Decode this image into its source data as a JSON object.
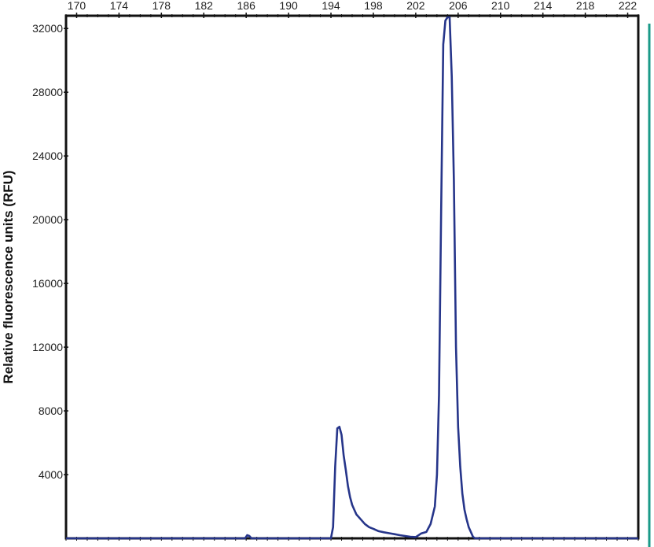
{
  "chart_data": {
    "type": "line",
    "title": "",
    "xlabel": "",
    "ylabel": "Relative fluorescence units (RFU)",
    "xlim": [
      169,
      223
    ],
    "ylim": [
      0,
      32800
    ],
    "x_ticks": [
      "170",
      "174",
      "178",
      "182",
      "186",
      "190",
      "194",
      "198",
      "202",
      "206",
      "210",
      "214",
      "218",
      "222"
    ],
    "y_ticks": [
      "4000",
      "8000",
      "12000",
      "16000",
      "20000",
      "24000",
      "28000",
      "32000"
    ],
    "x_tick_position": "top",
    "grid": false,
    "legend": "none",
    "series": [
      {
        "color": "#26358a",
        "x": [
          169,
          185.9,
          186.1,
          186.3,
          186.5,
          194.0,
          194.2,
          194.4,
          194.6,
          194.8,
          195.0,
          195.2,
          195.4,
          195.6,
          195.8,
          196.0,
          196.2,
          196.4,
          196.8,
          197.2,
          197.6,
          198.0,
          198.5,
          199.0,
          199.5,
          200.0,
          200.5,
          201.0,
          201.5,
          202.0,
          202.5,
          203.0,
          203.4,
          203.8,
          204.0,
          204.2,
          204.4,
          204.6,
          204.8,
          205.0,
          205.2,
          205.4,
          205.6,
          205.8,
          206.0,
          206.2,
          206.4,
          206.6,
          206.8,
          207.0,
          207.2,
          207.4,
          207.6,
          207.8,
          208.0,
          208.2,
          208.5,
          223
        ],
        "y": [
          0,
          0,
          200,
          150,
          0,
          0,
          700,
          4500,
          6900,
          7000,
          6500,
          5200,
          4300,
          3300,
          2600,
          2100,
          1800,
          1500,
          1200,
          900,
          700,
          600,
          450,
          380,
          320,
          260,
          200,
          150,
          100,
          80,
          300,
          400,
          900,
          2000,
          4000,
          9000,
          20500,
          31000,
          32500,
          32700,
          32700,
          29000,
          22500,
          12000,
          7000,
          4500,
          2800,
          1800,
          1200,
          700,
          400,
          100,
          0,
          0,
          0,
          0,
          0,
          0
        ]
      }
    ]
  }
}
